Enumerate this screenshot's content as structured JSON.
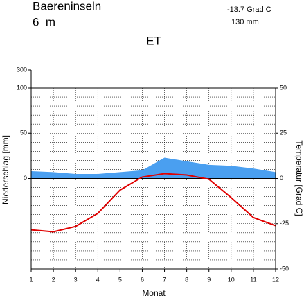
{
  "chart_data": {
    "type": "climate",
    "title": "Baereninseln",
    "subtitle": "6  m",
    "annotations": [
      "-13.7 Grad C",
      "130 mm"
    ],
    "climate_class": "ET",
    "xlabel": "Monat",
    "ylabel": "Niederschlag [mm]",
    "y2label": "Temperatur [Grad C]",
    "x": [
      1,
      2,
      3,
      4,
      5,
      6,
      7,
      8,
      9,
      10,
      11,
      12
    ],
    "xlim": [
      1,
      12
    ],
    "xticks": [
      1,
      2,
      3,
      4,
      5,
      6,
      7,
      8,
      9,
      10,
      11,
      12
    ],
    "series": [
      {
        "name": "Niederschlag",
        "color": "#4a9ff0",
        "values": [
          8,
          7,
          5,
          5,
          7,
          9,
          23,
          19,
          15,
          14,
          11,
          7
        ]
      },
      {
        "name": "Temperatur",
        "color": "#e00000",
        "axis": "y2",
        "values": [
          -28.4,
          -29.5,
          -26.5,
          -19.3,
          -6.4,
          0.8,
          2.7,
          1.9,
          -0.4,
          -10.6,
          -21.6,
          -26.1
        ]
      }
    ],
    "ylim": [
      -100,
      100
    ],
    "yticks": [
      0,
      50,
      100
    ],
    "ylim_compressed": [
      100,
      300
    ],
    "yticks_compressed": [
      300
    ],
    "y2lim": [
      -50,
      50
    ],
    "y2ticks": [
      -50,
      -25,
      0,
      25,
      50
    ],
    "grid": true,
    "grid_step": 5
  }
}
